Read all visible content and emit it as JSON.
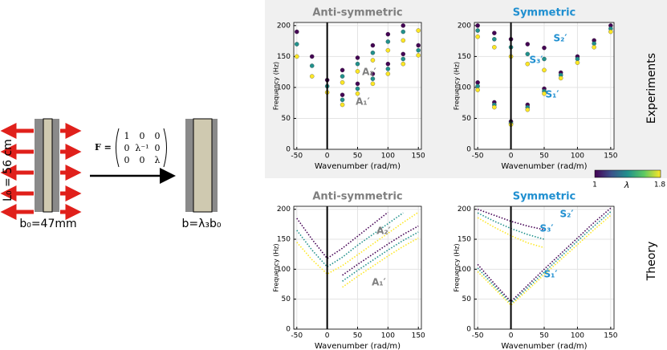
{
  "diagram": {
    "length_label": "L₀ = 56 cm",
    "width_label": "b₀=47mm",
    "result_label": "b=λ₃b₀",
    "matrix_name": "F =",
    "matrix": [
      [
        "1",
        "0",
        "0"
      ],
      [
        "0",
        "λ⁻¹",
        "0"
      ],
      [
        "0",
        "0",
        "λ"
      ]
    ]
  },
  "row_labels": [
    "Experiments",
    "Theory"
  ],
  "colorbar": {
    "label": "λ",
    "min_label": "1",
    "max_label": "1.8",
    "colors": [
      "#440154",
      "#3b528b",
      "#21918c",
      "#5ec962",
      "#fde725"
    ]
  },
  "chart_data": [
    {
      "type": "scatter",
      "title": "Anti-symmetric",
      "title_color": "#7f7f7f",
      "xlabel": "Wavenumber (rad/m)",
      "ylabel": "Frequency (Hz)",
      "xlim": [
        -55,
        155
      ],
      "ylim": [
        0,
        205
      ],
      "xticks": [
        -50,
        0,
        50,
        100,
        150
      ],
      "yticks": [
        0,
        50,
        100,
        150,
        200
      ],
      "grid": true,
      "x": [
        -50,
        -25,
        0,
        25,
        50,
        75,
        100,
        125,
        150
      ],
      "series": [
        {
          "color": "#440154",
          "values": [
            190,
            150,
            112,
            128,
            148,
            168,
            186,
            200,
            null
          ]
        },
        {
          "color": "#21918c",
          "values": [
            170,
            135,
            102,
            118,
            138,
            156,
            174,
            190,
            null
          ]
        },
        {
          "color": "#fde725",
          "values": [
            150,
            118,
            92,
            108,
            126,
            144,
            160,
            176,
            192
          ]
        },
        {
          "color": "#440154",
          "values": [
            null,
            null,
            null,
            88,
            106,
            122,
            138,
            154,
            168
          ]
        },
        {
          "color": "#21918c",
          "values": [
            null,
            null,
            null,
            80,
            98,
            114,
            130,
            146,
            160
          ]
        },
        {
          "color": "#fde725",
          "values": [
            null,
            null,
            null,
            72,
            90,
            106,
            122,
            138,
            152
          ]
        }
      ],
      "annotations": [
        "A₂′",
        "A₁′"
      ]
    },
    {
      "type": "scatter",
      "title": "Symmetric",
      "title_color": "#1f8fd0",
      "xlabel": "Wavenumber (rad/m)",
      "ylabel": "Frequency (Hz)",
      "xlim": [
        -55,
        155
      ],
      "ylim": [
        0,
        205
      ],
      "xticks": [
        -50,
        0,
        50,
        100,
        150
      ],
      "yticks": [
        0,
        50,
        100,
        150,
        200
      ],
      "grid": true,
      "x": [
        -50,
        -25,
        0,
        25,
        50,
        75,
        100,
        125,
        150
      ],
      "series": [
        {
          "color": "#440154",
          "values": [
            108,
            76,
            45,
            72,
            98,
            124,
            150,
            176,
            200
          ]
        },
        {
          "color": "#21918c",
          "values": [
            102,
            72,
            42,
            68,
            94,
            120,
            146,
            171,
            195
          ]
        },
        {
          "color": "#fde725",
          "values": [
            96,
            68,
            40,
            64,
            90,
            115,
            140,
            165,
            190
          ]
        },
        {
          "color": "#440154",
          "values": [
            200,
            188,
            178,
            170,
            164,
            null,
            null,
            null,
            null
          ]
        },
        {
          "color": "#21918c",
          "values": [
            192,
            178,
            165,
            154,
            146,
            null,
            null,
            null,
            null
          ]
        },
        {
          "color": "#fde725",
          "values": [
            182,
            165,
            150,
            138,
            128,
            null,
            null,
            null,
            null
          ]
        }
      ],
      "annotations": [
        "S₂′",
        "S₃′",
        "S₁′"
      ]
    },
    {
      "type": "line",
      "line_style": "dotted",
      "title": "Anti-symmetric",
      "title_color": "#7f7f7f",
      "xlabel": "Wavenumber (rad/m)",
      "ylabel": "Frequency (Hz)",
      "xlim": [
        -55,
        155
      ],
      "ylim": [
        0,
        205
      ],
      "xticks": [
        -50,
        0,
        50,
        100,
        150
      ],
      "yticks": [
        0,
        50,
        100,
        150,
        200
      ],
      "grid": true,
      "x": [
        -50,
        -25,
        0,
        25,
        50,
        75,
        100,
        125,
        150
      ],
      "series": [
        {
          "color": "#440154",
          "values": [
            185,
            150,
            118,
            135,
            155,
            175,
            195,
            null,
            null
          ]
        },
        {
          "color": "#21918c",
          "values": [
            165,
            132,
            104,
            120,
            140,
            158,
            176,
            194,
            null
          ]
        },
        {
          "color": "#fde725",
          "values": [
            145,
            116,
            92,
            106,
            124,
            142,
            160,
            178,
            195
          ]
        },
        {
          "color": "#440154",
          "values": [
            null,
            null,
            null,
            90,
            108,
            125,
            142,
            158,
            172
          ]
        },
        {
          "color": "#21918c",
          "values": [
            null,
            null,
            null,
            80,
            98,
            115,
            132,
            148,
            162
          ]
        },
        {
          "color": "#fde725",
          "values": [
            null,
            null,
            null,
            70,
            88,
            105,
            122,
            138,
            152
          ]
        }
      ],
      "annotations": [
        "A₂′",
        "A₁′"
      ]
    },
    {
      "type": "line",
      "line_style": "dotted",
      "title": "Symmetric",
      "title_color": "#1f8fd0",
      "xlabel": "Wavenumber (rad/m)",
      "ylabel": "Frequency (Hz)",
      "xlim": [
        -55,
        155
      ],
      "ylim": [
        0,
        205
      ],
      "xticks": [
        -50,
        0,
        50,
        100,
        150
      ],
      "yticks": [
        0,
        50,
        100,
        150,
        200
      ],
      "grid": true,
      "x": [
        -50,
        -25,
        0,
        25,
        50,
        75,
        100,
        125,
        150
      ],
      "series": [
        {
          "color": "#440154",
          "values": [
            108,
            76,
            46,
            73,
            100,
            126,
            152,
            178,
            202
          ]
        },
        {
          "color": "#21918c",
          "values": [
            102,
            72,
            43,
            69,
            95,
            121,
            147,
            172,
            196
          ]
        },
        {
          "color": "#fde725",
          "values": [
            96,
            68,
            40,
            65,
            91,
            116,
            141,
            166,
            190
          ]
        },
        {
          "color": "#440154",
          "values": [
            200,
            190,
            180,
            172,
            166,
            null,
            null,
            null,
            null
          ]
        },
        {
          "color": "#21918c",
          "values": [
            194,
            180,
            168,
            158,
            150,
            null,
            null,
            null,
            null
          ]
        },
        {
          "color": "#fde725",
          "values": [
            186,
            170,
            156,
            144,
            136,
            null,
            null,
            null,
            null
          ]
        }
      ],
      "annotations": [
        "S₂′",
        "S₃′",
        "S₁′"
      ]
    }
  ]
}
